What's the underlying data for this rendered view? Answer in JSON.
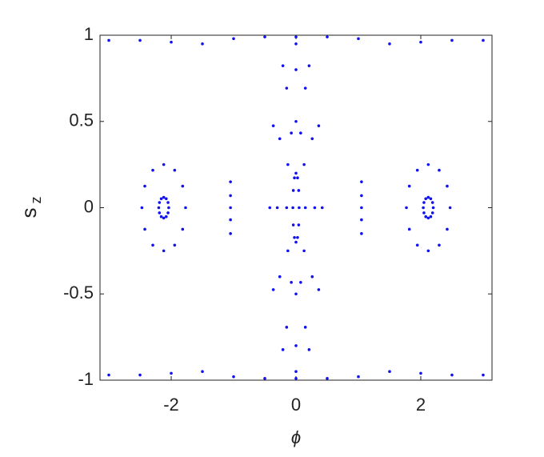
{
  "chart_data": {
    "type": "scatter",
    "x_label": "ϕ",
    "y_label": "s",
    "y_label_sub": "z",
    "color": "#1010f0",
    "xlim": [
      -3.1416,
      3.1416
    ],
    "ylim": [
      -1,
      1
    ],
    "xticks": [
      -2,
      0,
      2
    ],
    "yticks": [
      -1,
      -0.5,
      0,
      0.5,
      1
    ],
    "series": [
      {
        "x": [
          0.05,
          0.043,
          0.025,
          0,
          -0.025,
          -0.043,
          -0.05,
          -0.043,
          -0.025,
          0,
          0.025,
          0.043
        ],
        "y": [
          0,
          0.1,
          0.173,
          0.2,
          0.173,
          0.1,
          0,
          -0.1,
          -0.173,
          -0.2,
          -0.173,
          -0.1
        ]
      },
      {
        "x": [
          0.15,
          0.13,
          0.075,
          0,
          -0.075,
          -0.13,
          -0.15,
          -0.13,
          -0.075,
          0,
          0.075,
          0.13
        ],
        "y": [
          0,
          0.25,
          0.433,
          0.5,
          0.433,
          0.25,
          0,
          -0.25,
          -0.433,
          -0.5,
          -0.433,
          -0.25
        ]
      },
      {
        "x": [
          0.3,
          0.26,
          0.15,
          0,
          -0.15,
          -0.26,
          -0.3,
          -0.26,
          -0.15,
          0,
          0.15,
          0.26
        ],
        "y": [
          0,
          0.4,
          0.693,
          0.8,
          0.693,
          0.4,
          0,
          -0.4,
          -0.693,
          -0.8,
          -0.693,
          -0.4
        ]
      },
      {
        "x": [
          0.42,
          0.364,
          0.21,
          0,
          -0.21,
          -0.364,
          -0.42,
          -0.364,
          -0.21,
          0,
          0.21,
          0.364
        ],
        "y": [
          0,
          0.475,
          0.823,
          0.95,
          0.823,
          0.475,
          0,
          -0.475,
          -0.823,
          -0.95,
          -0.823,
          -0.475
        ]
      },
      {
        "x": [
          -1.77,
          -1.817,
          -1.945,
          -2.12,
          -2.295,
          -2.423,
          -2.47,
          -2.423,
          -2.295,
          -2.12,
          -1.945,
          -1.817
        ],
        "y": [
          0,
          0.125,
          0.217,
          0.25,
          0.217,
          0.125,
          0,
          -0.125,
          -0.217,
          -0.25,
          -0.217,
          -0.125
        ]
      },
      {
        "x": [
          1.77,
          1.817,
          1.945,
          2.12,
          2.295,
          2.423,
          2.47,
          2.423,
          2.295,
          2.12,
          1.945,
          1.817
        ],
        "y": [
          0,
          0.125,
          0.217,
          0.25,
          0.217,
          0.125,
          0,
          -0.125,
          -0.217,
          -0.25,
          -0.217,
          -0.125
        ]
      },
      {
        "x": [
          -2.04,
          -2.051,
          -2.08,
          -2.12,
          -2.16,
          -2.189,
          -2.2,
          -2.189,
          -2.16,
          -2.12,
          -2.08,
          -2.051
        ],
        "y": [
          0,
          0.03,
          0.052,
          0.06,
          0.052,
          0.03,
          0,
          -0.03,
          -0.052,
          -0.06,
          -0.052,
          -0.03
        ]
      },
      {
        "x": [
          2.04,
          2.051,
          2.08,
          2.12,
          2.16,
          2.189,
          2.2,
          2.189,
          2.16,
          2.12,
          2.08,
          2.051
        ],
        "y": [
          0,
          0.03,
          0.052,
          0.06,
          0.052,
          0.03,
          0,
          -0.03,
          -0.052,
          -0.06,
          -0.052,
          -0.03
        ]
      },
      {
        "x": [
          -1.05,
          -1.05,
          -1.05,
          -1.05,
          -1.05,
          1.05,
          1.05,
          1.05,
          1.05,
          1.05
        ],
        "y": [
          -0.15,
          -0.07,
          0,
          0.07,
          0.15,
          -0.15,
          -0.07,
          0,
          0.07,
          0.15
        ]
      },
      {
        "x": [
          -3,
          -2.5,
          -2,
          -1.5,
          -1,
          -0.5,
          0,
          0.5,
          1,
          1.5,
          2,
          2.5,
          3
        ],
        "y": [
          0.97,
          0.97,
          0.96,
          0.95,
          0.98,
          0.99,
          0.99,
          0.99,
          0.98,
          0.95,
          0.96,
          0.97,
          0.97
        ]
      },
      {
        "x": [
          -3,
          -2.5,
          -2,
          -1.5,
          -1,
          -0.5,
          0,
          0.5,
          1,
          1.5,
          2,
          2.5,
          3
        ],
        "y": [
          -0.97,
          -0.97,
          -0.96,
          -0.95,
          -0.98,
          -0.99,
          -0.99,
          -0.99,
          -0.98,
          -0.95,
          -0.96,
          -0.97,
          -0.97
        ]
      }
    ]
  }
}
